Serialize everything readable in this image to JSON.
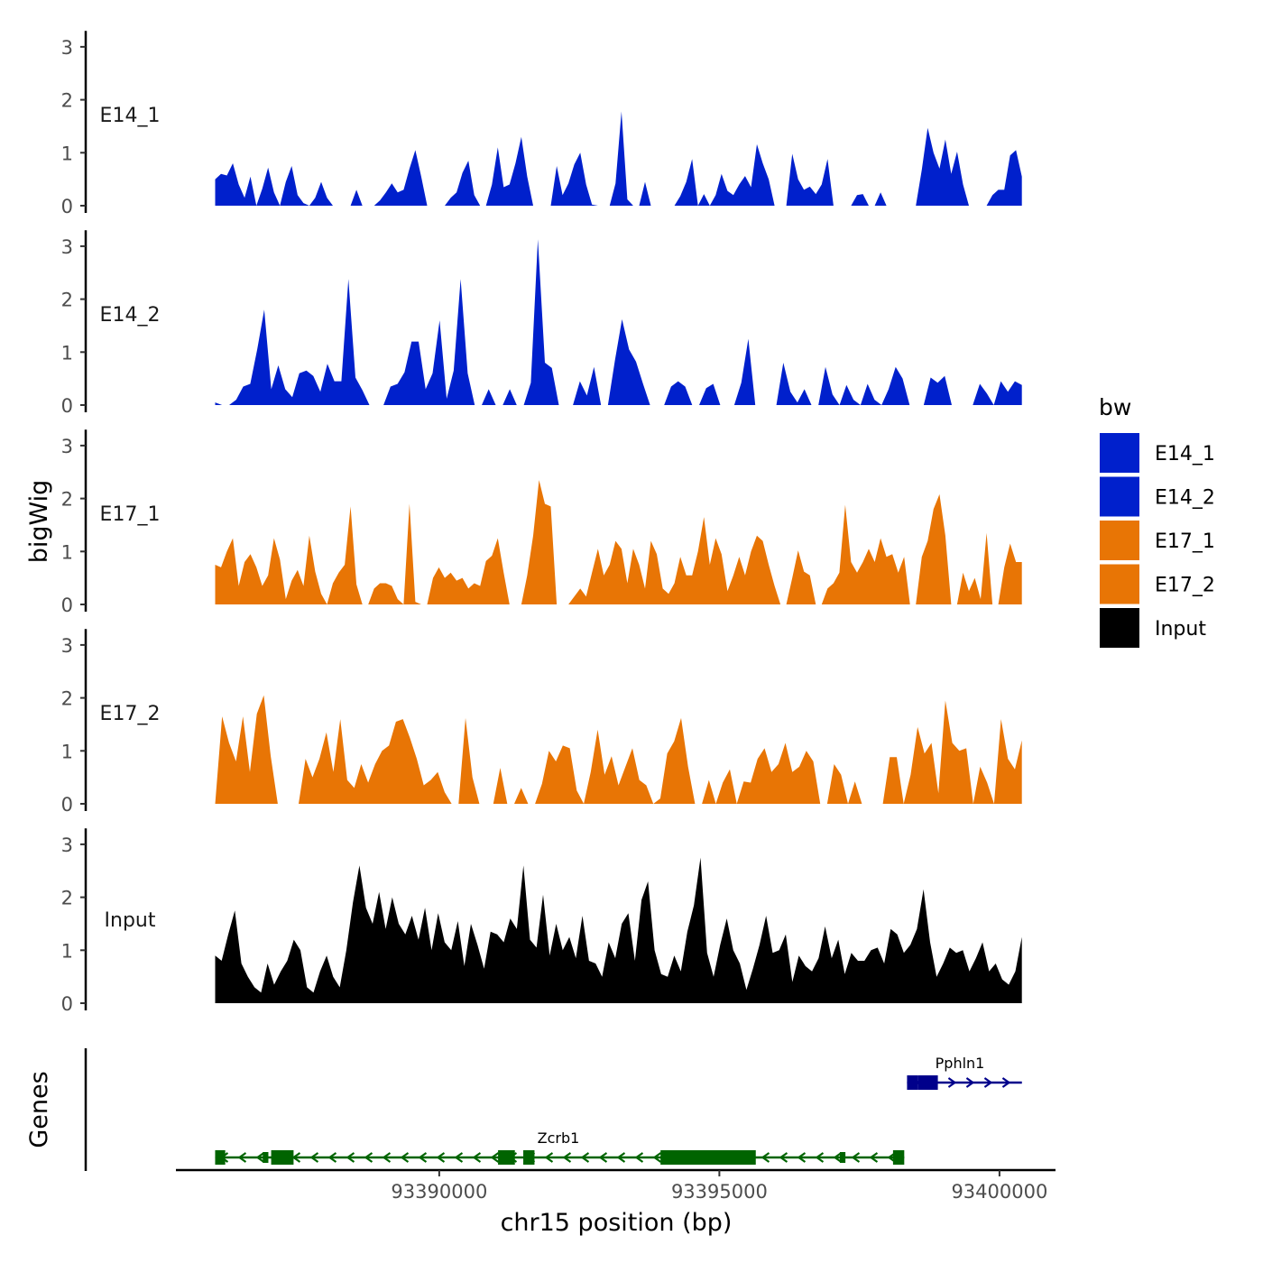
{
  "chart_data": {
    "type": "area",
    "title": "",
    "ylabel": "bigWig",
    "genes_label": "Genes",
    "xlabel": "chr15 position (bp)",
    "x_range": [
      93386000,
      93400400
    ],
    "xlim": [
      93385300,
      93401000
    ],
    "ylim": [
      0,
      3.3
    ],
    "y_ticks": [
      "0",
      "1",
      "2",
      "3"
    ],
    "x_ticks": [
      {
        "value": 93390000,
        "label": "93390000"
      },
      {
        "value": 93395000,
        "label": "93395000"
      },
      {
        "value": 93400000,
        "label": "93400000"
      }
    ],
    "legend": {
      "title": "bw",
      "position": "right",
      "items": [
        {
          "label": "E14_1",
          "color": "#0020CC"
        },
        {
          "label": "E14_2",
          "color": "#0020CC"
        },
        {
          "label": "E17_1",
          "color": "#E87505"
        },
        {
          "label": "E17_2",
          "color": "#E87505"
        },
        {
          "label": "Input",
          "color": "#000000"
        }
      ]
    },
    "series": [
      {
        "name": "E14_1",
        "color": "#0020CC",
        "values": [
          0.5,
          0.6,
          0.57,
          0.8,
          0.4,
          0.15,
          0.55,
          0.0,
          0.32,
          0.72,
          0.25,
          0.0,
          0.45,
          0.75,
          0.2,
          0.05,
          0.0,
          0.15,
          0.45,
          0.15,
          0.0,
          0.0,
          0.0,
          0.0,
          0.3,
          0.0,
          0.0,
          0.0,
          0.1,
          0.25,
          0.42,
          0.25,
          0.3,
          0.7,
          1.05,
          0.55,
          0.0,
          0.0,
          0.0,
          0.0,
          0.15,
          0.25,
          0.62,
          0.85,
          0.2,
          0.0,
          0.0,
          0.4,
          1.1,
          0.35,
          0.4,
          0.8,
          1.3,
          0.55,
          0.0,
          0.0,
          0.0,
          0.0,
          0.75,
          0.2,
          0.42,
          0.78,
          1.0,
          0.4,
          0.02,
          0.0,
          0.0,
          0.0,
          0.42,
          1.78,
          0.12,
          0.0,
          0.0,
          0.45,
          0.0,
          0.0,
          0.0,
          0.0,
          0.0,
          0.18,
          0.45,
          0.88,
          0.0,
          0.22,
          0.0,
          0.2,
          0.6,
          0.28,
          0.2,
          0.4,
          0.56,
          0.35,
          1.16,
          0.8,
          0.5,
          0.0,
          0.0,
          0.0,
          0.98,
          0.5,
          0.3,
          0.36,
          0.22,
          0.4,
          0.88,
          0.0,
          0.0,
          0.0,
          0.0,
          0.2,
          0.22,
          0.0,
          0.0,
          0.25,
          0.0,
          0.0,
          0.0,
          0.0,
          0.0,
          0.0,
          0.68,
          1.47,
          1.0,
          0.7,
          1.25,
          0.6,
          1.02,
          0.4,
          0.0,
          0.0,
          0.0,
          0.0,
          0.2,
          0.3,
          0.3,
          0.95,
          1.05,
          0.55
        ]
      },
      {
        "name": "E14_2",
        "color": "#0020CC",
        "values": [
          0.05,
          0.0,
          0.0,
          0.1,
          0.35,
          0.4,
          1.05,
          1.8,
          0.3,
          0.75,
          0.3,
          0.15,
          0.6,
          0.65,
          0.55,
          0.25,
          0.78,
          0.45,
          0.45,
          2.38,
          0.52,
          0.28,
          0.0,
          0.0,
          0.0,
          0.35,
          0.4,
          0.62,
          1.2,
          1.2,
          0.3,
          0.6,
          1.6,
          0.12,
          0.65,
          2.38,
          0.6,
          0.0,
          0.0,
          0.3,
          0.0,
          0.0,
          0.3,
          0.0,
          0.0,
          0.42,
          3.13,
          0.8,
          0.7,
          0.0,
          0.0,
          0.0,
          0.45,
          0.18,
          0.72,
          0.0,
          0.0,
          0.85,
          1.62,
          1.05,
          0.82,
          0.4,
          0.0,
          0.0,
          0.0,
          0.35,
          0.45,
          0.35,
          0.0,
          0.0,
          0.32,
          0.4,
          0.0,
          0.0,
          0.0,
          0.42,
          1.25,
          0.0,
          0.0,
          0.0,
          0.0,
          0.8,
          0.25,
          0.05,
          0.3,
          0.0,
          0.0,
          0.72,
          0.2,
          0.0,
          0.38,
          0.1,
          0.0,
          0.4,
          0.1,
          0.0,
          0.3,
          0.72,
          0.5,
          0.0,
          0.0,
          0.0,
          0.52,
          0.42,
          0.55,
          0.0,
          0.0,
          0.0,
          0.0,
          0.4,
          0.22,
          0.0,
          0.45,
          0.25,
          0.45,
          0.38
        ]
      },
      {
        "name": "E17_1",
        "color": "#E87505",
        "values": [
          0.75,
          0.7,
          1.0,
          1.25,
          0.35,
          0.8,
          0.95,
          0.7,
          0.35,
          0.55,
          1.25,
          0.85,
          0.1,
          0.45,
          0.65,
          0.35,
          1.3,
          0.62,
          0.2,
          0.0,
          0.4,
          0.6,
          0.75,
          1.85,
          0.38,
          0.0,
          0.0,
          0.3,
          0.4,
          0.4,
          0.35,
          0.1,
          0.0,
          1.9,
          0.05,
          0.0,
          0.0,
          0.5,
          0.7,
          0.5,
          0.6,
          0.45,
          0.5,
          0.3,
          0.4,
          0.35,
          0.82,
          0.92,
          1.25,
          0.6,
          0.0,
          0.0,
          0.0,
          0.55,
          1.3,
          2.35,
          1.9,
          1.85,
          0.0,
          0.0,
          0.0,
          0.15,
          0.3,
          0.15,
          0.6,
          1.05,
          0.55,
          0.75,
          1.2,
          1.05,
          0.4,
          1.05,
          0.75,
          0.3,
          1.2,
          0.95,
          0.3,
          0.2,
          0.4,
          0.9,
          0.55,
          0.55,
          1.0,
          1.65,
          0.75,
          1.25,
          0.95,
          0.25,
          0.55,
          0.9,
          0.55,
          1.0,
          1.3,
          1.2,
          0.75,
          0.35,
          0.0,
          0.0,
          0.5,
          1.02,
          0.62,
          0.55,
          0.0,
          0.0,
          0.3,
          0.4,
          0.6,
          1.88,
          0.8,
          0.6,
          0.8,
          1.05,
          0.8,
          1.25,
          0.9,
          0.95,
          0.6,
          0.9,
          0.0,
          0.0,
          0.9,
          1.2,
          1.8,
          2.08,
          1.3,
          0.0,
          0.0,
          0.6,
          0.25,
          0.5,
          0.1,
          1.35,
          0.0,
          0.0,
          0.7,
          1.15,
          0.8,
          0.8
        ]
      },
      {
        "name": "E17_2",
        "color": "#E87505",
        "values": [
          0.0,
          1.65,
          1.15,
          0.8,
          1.65,
          0.6,
          1.7,
          2.05,
          0.9,
          0.0,
          0.0,
          0.0,
          0.0,
          0.85,
          0.5,
          0.85,
          1.35,
          0.6,
          1.6,
          0.45,
          0.3,
          0.75,
          0.4,
          0.75,
          1.0,
          1.1,
          1.55,
          1.6,
          1.25,
          0.85,
          0.35,
          0.45,
          0.6,
          0.22,
          0.0,
          0.0,
          1.62,
          0.5,
          0.0,
          0.0,
          0.0,
          0.68,
          0.0,
          0.0,
          0.3,
          0.0,
          0.0,
          0.38,
          1.0,
          0.8,
          1.1,
          1.05,
          0.25,
          0.0,
          0.6,
          1.4,
          0.55,
          0.9,
          0.35,
          0.7,
          1.05,
          0.45,
          0.35,
          0.0,
          0.1,
          0.95,
          1.18,
          1.62,
          0.7,
          0.0,
          0.0,
          0.45,
          0.0,
          0.4,
          0.65,
          0.0,
          0.42,
          0.4,
          0.85,
          1.05,
          0.6,
          0.75,
          1.15,
          0.6,
          0.7,
          1.0,
          0.8,
          0.0,
          0.0,
          0.75,
          0.55,
          0.0,
          0.42,
          0.0,
          0.0,
          0.0,
          0.0,
          0.88,
          0.88,
          0.0,
          0.55,
          1.45,
          0.95,
          1.15,
          0.2,
          1.95,
          1.15,
          1.0,
          1.05,
          0.0,
          0.7,
          0.4,
          0.0,
          1.6,
          0.85,
          0.65,
          1.2
        ]
      },
      {
        "name": "Input",
        "color": "#000000",
        "values": [
          0.9,
          0.8,
          1.3,
          1.75,
          0.75,
          0.5,
          0.3,
          0.2,
          0.75,
          0.35,
          0.6,
          0.8,
          1.2,
          1.0,
          0.3,
          0.2,
          0.6,
          0.9,
          0.5,
          0.3,
          1.0,
          1.9,
          2.6,
          1.8,
          1.5,
          2.1,
          1.4,
          2.0,
          1.5,
          1.3,
          1.65,
          1.2,
          1.8,
          1.0,
          1.7,
          1.15,
          1.0,
          1.55,
          0.7,
          1.5,
          1.1,
          0.65,
          1.35,
          1.3,
          1.15,
          1.6,
          1.4,
          2.6,
          1.2,
          1.05,
          2.05,
          0.9,
          1.5,
          1.0,
          1.25,
          0.85,
          1.65,
          0.8,
          0.75,
          0.5,
          1.15,
          0.85,
          1.5,
          1.7,
          0.8,
          1.95,
          2.3,
          1.0,
          0.55,
          0.5,
          0.9,
          0.6,
          1.35,
          1.85,
          2.75,
          0.95,
          0.5,
          1.1,
          1.6,
          1.0,
          0.75,
          0.25,
          0.65,
          1.1,
          1.65,
          0.95,
          1.0,
          1.3,
          0.4,
          0.9,
          0.7,
          0.6,
          0.85,
          1.45,
          0.85,
          1.2,
          0.55,
          0.95,
          0.8,
          0.8,
          1.0,
          1.05,
          0.75,
          1.4,
          1.3,
          0.95,
          1.1,
          1.4,
          2.15,
          1.15,
          0.5,
          0.75,
          1.05,
          0.95,
          1.0,
          0.6,
          0.85,
          1.15,
          0.6,
          0.75,
          0.45,
          0.35,
          0.6,
          1.25
        ]
      }
    ],
    "genes": [
      {
        "name": "Zcrb1",
        "strand": "-",
        "color": "#006400",
        "start": 93386000,
        "end": 93398300,
        "exons": [
          [
            93386000,
            93386180
          ],
          [
            93386850,
            93386950
          ],
          [
            93387000,
            93387400
          ],
          [
            93391050,
            93391350
          ],
          [
            93391500,
            93391700
          ],
          [
            93393950,
            93395650
          ],
          [
            93397150,
            93397250
          ],
          [
            93398100,
            93398300
          ]
        ]
      },
      {
        "name": "Pphln1",
        "strand": "+",
        "color": "#00008B",
        "start": 93398350,
        "end": 93400400,
        "exons": [
          [
            93398350,
            93398550
          ],
          [
            93398550,
            93398900
          ]
        ]
      }
    ]
  }
}
